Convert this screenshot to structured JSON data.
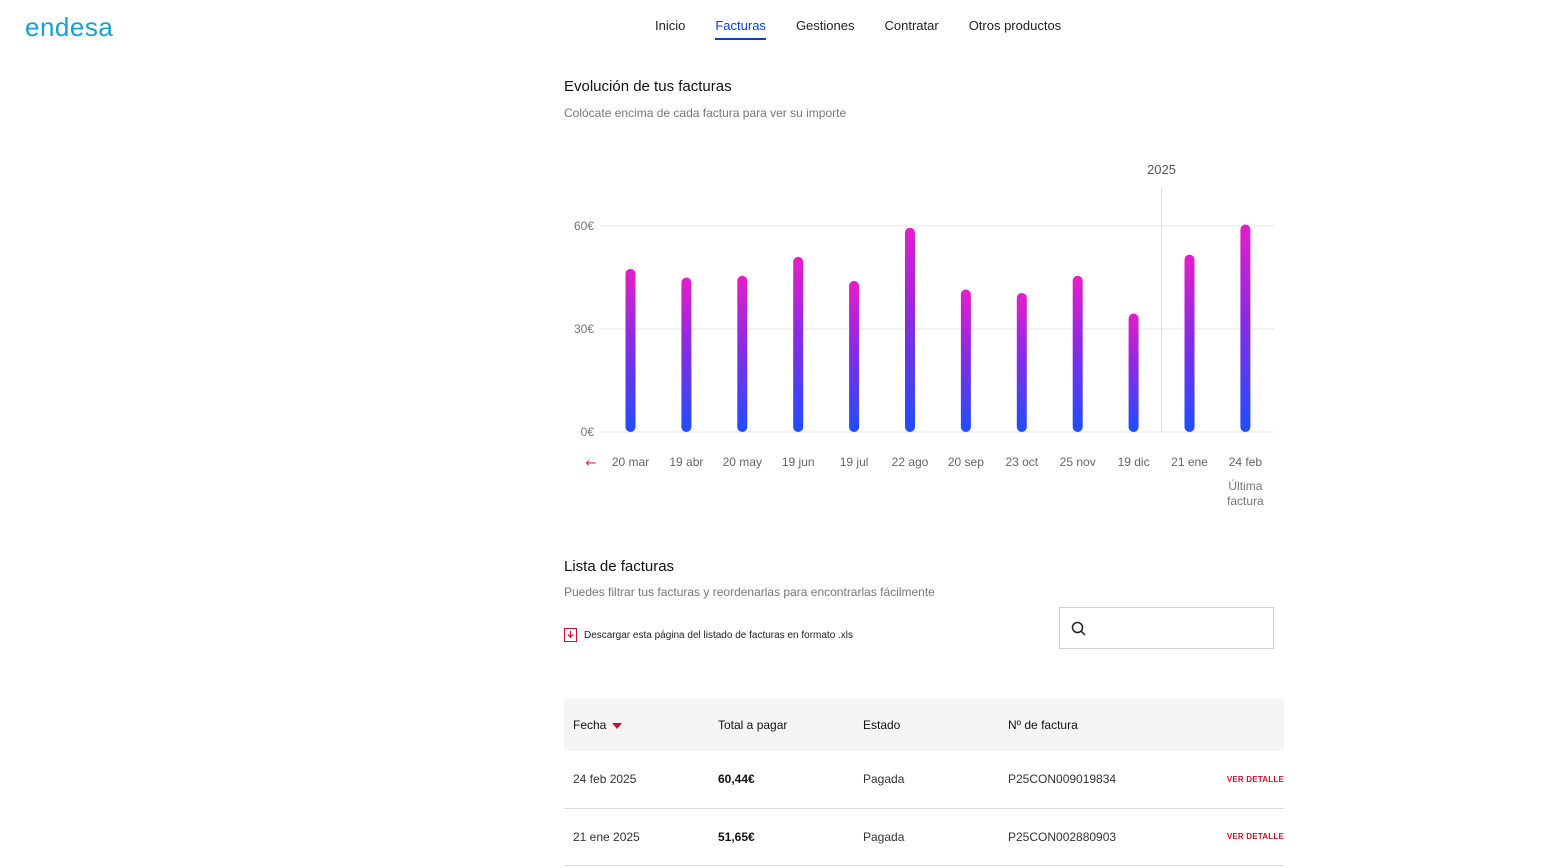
{
  "brand": {
    "logo_text": "endesa",
    "color": "#1a9ed9"
  },
  "nav": {
    "items": [
      "Inicio",
      "Facturas",
      "Gestiones",
      "Contratar",
      "Otros productos"
    ],
    "active": "Facturas"
  },
  "evolution": {
    "title": "Evolución de tus facturas",
    "subtitle": "Colócate encima de cada factura para ver su importe",
    "year_marker": "2025",
    "prev_arrow": "←",
    "last_label_line1": "Última",
    "last_label_line2": "factura"
  },
  "chart_data": {
    "type": "bar",
    "categories": [
      "20 mar",
      "19 abr",
      "20 may",
      "19 jun",
      "19 jul",
      "22 ago",
      "20 sep",
      "23 oct",
      "25 nov",
      "19 dic",
      "21 ene",
      "24 feb"
    ],
    "values": [
      47.5,
      45,
      45.5,
      51,
      44,
      59.5,
      41.5,
      40.5,
      45.5,
      34.5,
      51.65,
      60.44
    ],
    "ytick_labels": [
      "0€",
      "30€",
      "60€"
    ],
    "yticks": [
      0,
      30,
      60
    ],
    "ylim": [
      0,
      60
    ],
    "grid": true,
    "colors": {
      "top": "#e61ec8",
      "bottom": "#1f4dff"
    }
  },
  "list": {
    "title": "Lista de facturas",
    "subtitle": "Puedes filtrar tus facturas y reordenarlas para encontrarlas fácilmente",
    "download_label": "Descargar esta página del listado de facturas en formato .xls",
    "search_placeholder": ""
  },
  "table": {
    "headers": {
      "fecha": "Fecha",
      "total": "Total a pagar",
      "estado": "Estado",
      "numero": "Nº de factura"
    },
    "rows": [
      {
        "fecha": "24 feb 2025",
        "total": "60,44€",
        "estado": "Pagada",
        "numero": "P25CON009019834",
        "detail": "VER DETALLE"
      },
      {
        "fecha": "21 ene 2025",
        "total": "51,65€",
        "estado": "Pagada",
        "numero": "P25CON002880903",
        "detail": "VER DETALLE"
      }
    ]
  }
}
